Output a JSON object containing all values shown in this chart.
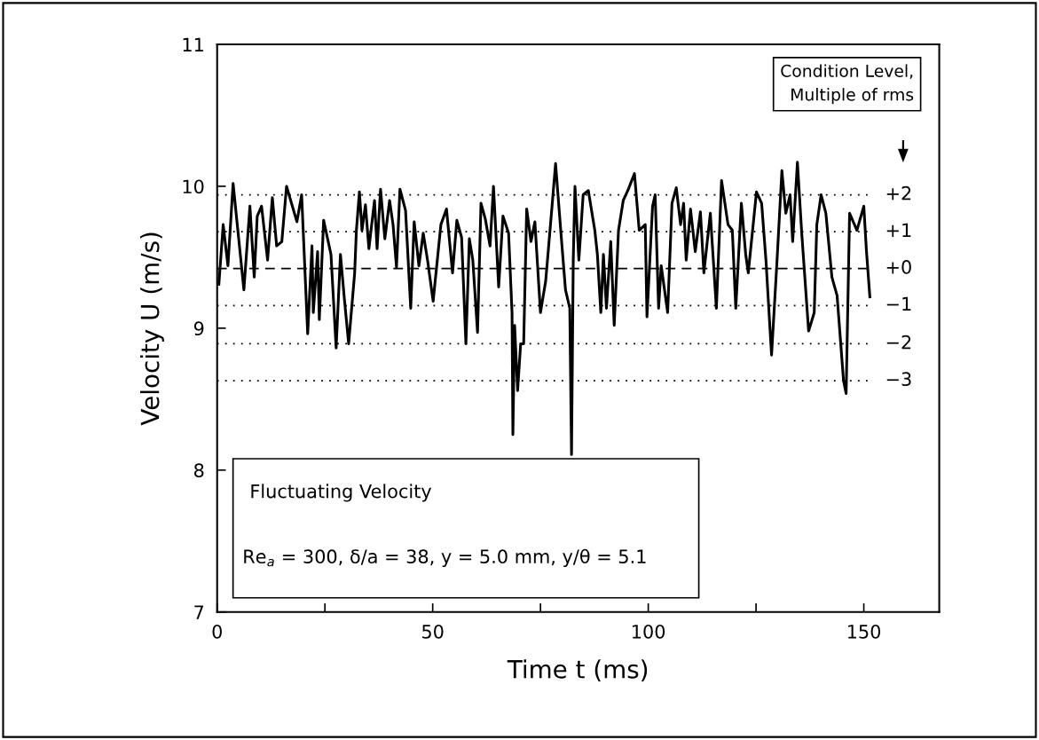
{
  "chart_data": {
    "type": "line",
    "xlabel": "Time t (ms)",
    "ylabel": "Velocity U (m/s)",
    "xlim": [
      0,
      167.5
    ],
    "xticks": [
      0,
      {
        "value": 25,
        "label": null
      },
      50,
      {
        "value": 75,
        "label": null
      },
      100,
      {
        "value": 125,
        "label": null
      },
      150
    ],
    "ylim": [
      7,
      11
    ],
    "yticks": [
      7,
      8,
      9,
      10,
      11
    ],
    "grid": false,
    "marker": "none",
    "line_style": "solid",
    "series": [
      {
        "color": "#000000",
        "x": [
          0.4,
          1.4,
          2.5,
          3.7,
          6.2,
          7.6,
          8.6,
          9.3,
          10.3,
          11.7,
          12.8,
          13.8,
          15.0,
          16.1,
          18.5,
          19.6,
          21.0,
          22.0,
          22.3,
          23.3,
          23.7,
          24.7,
          26.4,
          27.6,
          28.6,
          29.5,
          30.5,
          31.9,
          32.3,
          33.0,
          33.6,
          34.4,
          35.2,
          36.5,
          37.1,
          37.9,
          38.9,
          40.0,
          40.8,
          41.6,
          42.4,
          43.7,
          44.9,
          45.7,
          46.8,
          47.8,
          48.8,
          50.1,
          51.9,
          53.2,
          54.6,
          55.6,
          56.7,
          57.7,
          58.5,
          59.3,
          60.4,
          61.2,
          62.2,
          63.3,
          64.1,
          65.3,
          66.3,
          67.6,
          68.4,
          68.6,
          69.0,
          69.7,
          70.4,
          71.1,
          71.8,
          72.8,
          73.7,
          75.0,
          76.2,
          77.6,
          78.5,
          79.7,
          80.8,
          81.8,
          82.2,
          82.6,
          83.0,
          83.9,
          84.9,
          86.1,
          87.6,
          88.2,
          89.0,
          89.6,
          90.3,
          91.3,
          92.1,
          93.1,
          94.2,
          95.4,
          96.8,
          97.9,
          99.3,
          99.7,
          101.0,
          101.6,
          102.4,
          103.0,
          104.5,
          105.5,
          106.5,
          107.5,
          108.2,
          108.8,
          109.8,
          110.9,
          112.1,
          112.9,
          114.4,
          115.8,
          117.0,
          118.5,
          119.5,
          120.3,
          121.6,
          122.6,
          123.2,
          125.1,
          126.3,
          127.3,
          128.6,
          129.8,
          131.0,
          131.9,
          132.9,
          133.5,
          134.6,
          135.6,
          137.2,
          138.5,
          139.1,
          140.1,
          141.2,
          142.6,
          143.8,
          145.3,
          145.9,
          146.7,
          148.4,
          150.0,
          150.6,
          151.4
        ],
        "values": [
          9.31,
          9.73,
          9.44,
          10.02,
          9.27,
          9.86,
          9.36,
          9.79,
          9.86,
          9.48,
          9.92,
          9.58,
          9.61,
          10.0,
          9.75,
          9.94,
          8.96,
          9.58,
          9.11,
          9.54,
          9.06,
          9.76,
          9.52,
          8.86,
          9.52,
          9.21,
          8.89,
          9.39,
          9.69,
          9.96,
          9.69,
          9.87,
          9.56,
          9.9,
          9.56,
          9.98,
          9.63,
          9.9,
          9.73,
          9.43,
          9.98,
          9.83,
          9.14,
          9.75,
          9.44,
          9.67,
          9.48,
          9.19,
          9.73,
          9.84,
          9.39,
          9.76,
          9.64,
          8.89,
          9.63,
          9.48,
          8.97,
          9.88,
          9.77,
          9.58,
          10.0,
          9.29,
          9.79,
          9.67,
          9.11,
          8.25,
          9.02,
          8.56,
          8.89,
          8.89,
          9.84,
          9.61,
          9.75,
          9.11,
          9.33,
          9.83,
          10.16,
          9.69,
          9.27,
          9.14,
          8.11,
          9.48,
          10.0,
          9.48,
          9.94,
          9.97,
          9.69,
          9.52,
          9.11,
          9.52,
          9.14,
          9.61,
          9.02,
          9.69,
          9.9,
          9.98,
          10.09,
          9.69,
          9.73,
          9.08,
          9.86,
          9.94,
          9.14,
          9.44,
          9.11,
          9.88,
          9.99,
          9.73,
          9.88,
          9.48,
          9.84,
          9.54,
          9.82,
          9.39,
          9.81,
          9.14,
          10.04,
          9.73,
          9.69,
          9.14,
          9.88,
          9.52,
          9.39,
          9.96,
          9.88,
          9.48,
          8.81,
          9.44,
          10.11,
          9.81,
          9.94,
          9.61,
          10.17,
          9.67,
          8.98,
          9.11,
          9.73,
          9.94,
          9.81,
          9.36,
          9.23,
          8.63,
          8.54,
          9.81,
          9.69,
          9.86,
          9.55,
          9.22
        ]
      }
    ],
    "ref_lines": [
      {
        "axis": "y",
        "value": 9.94,
        "line_style": "dotted",
        "color": "#000000"
      },
      {
        "axis": "y",
        "value": 9.68,
        "line_style": "dotted",
        "color": "#000000"
      },
      {
        "axis": "y",
        "value": 9.42,
        "line_style": "dashed",
        "color": "#000000"
      },
      {
        "axis": "y",
        "value": 9.16,
        "line_style": "dotted",
        "color": "#000000"
      },
      {
        "axis": "y",
        "value": 8.89,
        "line_style": "dotted",
        "color": "#000000"
      },
      {
        "axis": "y",
        "value": 8.63,
        "line_style": "dotted",
        "color": "#000000"
      }
    ],
    "annotations": [
      "Condition Level,\nMultiple of rms",
      "Fluctuating Velocity",
      "Re$_{a}$ = 300, δ/a = 38, y = 5.0 mm, y/θ = 5.1",
      "+2",
      "+1",
      "+0",
      "−1",
      "−2",
      "−3"
    ]
  }
}
